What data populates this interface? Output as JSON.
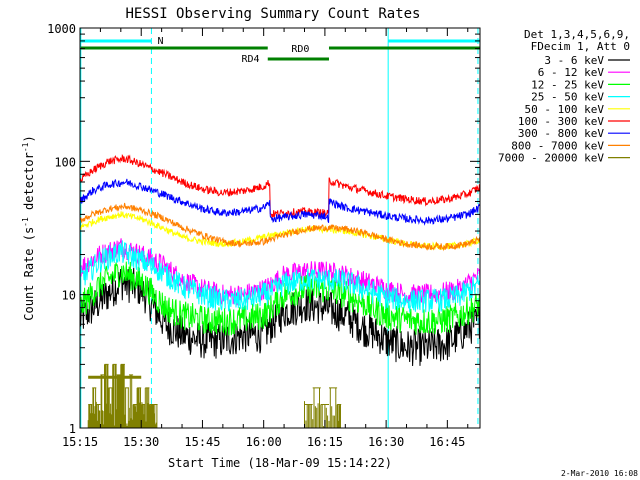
{
  "chart_data": {
    "type": "line",
    "title": "HESSI Observing Summary Count Rates",
    "xlabel": "Start Time (18-Mar-09 15:14:22)",
    "ylabel_main": "Count Rate (s",
    "ylabel_sup1": "-1",
    "ylabel_mid": " detector",
    "ylabel_sup2": "-1",
    "ylabel_end": ")",
    "timestamp": "2-Mar-2010 16:08",
    "y_scale": "log",
    "xlim_minutes": [
      15.0,
      113.0
    ],
    "ylim": [
      1,
      1000
    ],
    "x_ticks": [
      {
        "label": "15:15",
        "min": 15
      },
      {
        "label": "15:30",
        "min": 30
      },
      {
        "label": "15:45",
        "min": 45
      },
      {
        "label": "16:00",
        "min": 60
      },
      {
        "label": "16:15",
        "min": 75
      },
      {
        "label": "16:30",
        "min": 90
      },
      {
        "label": "16:45",
        "min": 105
      }
    ],
    "y_ticks": [
      {
        "label": "1",
        "value": 1
      },
      {
        "label": "10",
        "value": 10
      },
      {
        "label": "100",
        "value": 100
      },
      {
        "label": "1000",
        "value": 1000
      }
    ],
    "legend_header": [
      "Det 1,3,4,5,6,9,",
      "FDecim 1, Att 0"
    ],
    "legend_position": "outside-right",
    "series": [
      {
        "name": "3 - 6 keV",
        "color": "#000000",
        "x": [
          15,
          20,
          25,
          30,
          33,
          36,
          40,
          45,
          50,
          55,
          60,
          62,
          65,
          70,
          75,
          80,
          85,
          88,
          90,
          95,
          100,
          105,
          108,
          113
        ],
        "y": [
          6.5,
          9,
          12.5,
          11,
          8,
          6,
          5,
          4.5,
          4.5,
          5,
          5,
          6,
          7.5,
          8.5,
          8,
          7,
          5.5,
          5,
          4.5,
          4,
          4,
          4.3,
          5,
          6.5
        ]
      },
      {
        "name": "6 - 12 keV",
        "color": "#ff00ff",
        "x": [
          15,
          20,
          25,
          30,
          35,
          40,
          45,
          50,
          55,
          60,
          62,
          65,
          70,
          75,
          80,
          85,
          90,
          95,
          100,
          105,
          108,
          113
        ],
        "y": [
          16,
          20,
          23,
          20,
          17,
          13,
          11,
          10,
          10,
          11,
          12,
          14,
          15,
          15,
          14,
          12.5,
          11,
          10,
          10,
          10.5,
          11,
          14
        ]
      },
      {
        "name": "12 - 25 keV",
        "color": "#00ff00",
        "x": [
          15,
          20,
          25,
          30,
          33,
          36,
          40,
          45,
          50,
          55,
          60,
          62,
          65,
          70,
          75,
          80,
          85,
          88,
          90,
          95,
          100,
          105,
          108,
          113
        ],
        "y": [
          8,
          12,
          15,
          12.5,
          10,
          8,
          7,
          6.5,
          6.3,
          6.5,
          7,
          8,
          10,
          11,
          11,
          10,
          8.5,
          7.5,
          7,
          6.5,
          6.3,
          6.5,
          7,
          8.5
        ]
      },
      {
        "name": "25 - 50 keV",
        "color": "#00ffff",
        "x": [
          15,
          20,
          25,
          30,
          35,
          40,
          45,
          50,
          55,
          60,
          62,
          65,
          70,
          75,
          80,
          85,
          90,
          95,
          100,
          105,
          108,
          113
        ],
        "y": [
          13,
          18,
          21,
          18,
          15,
          11.5,
          10,
          9,
          9,
          10,
          10.5,
          12,
          13,
          13,
          12.5,
          11,
          9.5,
          9,
          9,
          9.2,
          9.8,
          12
        ]
      },
      {
        "name": "50 - 100 keV",
        "color": "#ffff00",
        "x": [
          15,
          20,
          25,
          30,
          35,
          40,
          45,
          50,
          55,
          60,
          65,
          70,
          75,
          80,
          85,
          90,
          95,
          100,
          105,
          110,
          113
        ],
        "y": [
          32,
          37,
          40,
          37,
          32,
          27,
          25,
          24,
          25,
          27,
          29,
          31,
          31,
          30,
          28,
          26,
          24,
          23,
          23,
          24,
          26
        ]
      },
      {
        "name": "100 - 300 keV",
        "color": "#ff0000",
        "x": [
          15,
          18,
          22,
          26,
          30,
          35,
          40,
          45,
          50,
          55,
          60,
          61.5,
          61.6,
          65,
          70,
          75,
          75.9,
          76,
          80,
          85,
          90,
          95,
          100,
          105,
          110,
          113
        ],
        "y": [
          72,
          85,
          100,
          105,
          95,
          82,
          70,
          62,
          58,
          60,
          65,
          70,
          40,
          41,
          42,
          41,
          40,
          72,
          65,
          60,
          55,
          52,
          50,
          52,
          57,
          64
        ]
      },
      {
        "name": "300 - 800 keV",
        "color": "#0000ff",
        "x": [
          15,
          18,
          22,
          26,
          30,
          35,
          40,
          45,
          50,
          55,
          60,
          61.5,
          61.6,
          65,
          70,
          75,
          75.9,
          76,
          80,
          85,
          90,
          95,
          100,
          105,
          110,
          113
        ],
        "y": [
          50,
          60,
          67,
          70,
          65,
          57,
          50,
          44,
          41,
          42,
          45,
          49,
          37,
          38,
          40,
          39,
          37,
          50,
          45,
          42,
          39,
          37,
          36,
          37,
          40,
          45
        ]
      },
      {
        "name": "800 - 7000 keV",
        "color": "#ff8000",
        "x": [
          15,
          18,
          22,
          26,
          30,
          35,
          40,
          45,
          50,
          55,
          60,
          65,
          70,
          75,
          80,
          85,
          90,
          95,
          100,
          105,
          110,
          113
        ],
        "y": [
          36,
          40,
          44,
          46,
          43,
          38,
          32,
          28,
          25,
          24,
          25,
          28,
          31,
          32,
          31,
          29,
          26,
          24,
          23,
          23,
          24,
          26
        ]
      },
      {
        "name": "7000 - 20000 keV",
        "color": "#808000",
        "x": [
          17,
          18,
          19,
          20,
          21,
          22,
          23,
          24,
          25,
          26,
          27,
          28,
          29,
          30,
          31,
          32,
          33,
          70,
          72,
          74,
          76,
          78
        ],
        "y": [
          1.5,
          2,
          1.5,
          2.5,
          3,
          2,
          3,
          2.5,
          3,
          2,
          2.5,
          1.5,
          2,
          1.5,
          2,
          1.5,
          1.5,
          1.5,
          2,
          1.5,
          2,
          1.5
        ]
      }
    ],
    "vertical_lines_solid": [
      15.2,
      90.5
    ],
    "vertical_lines_dashed": [
      32.5,
      112.5
    ],
    "top_bars": {
      "cyan_N": {
        "label": "N",
        "color": "#00ffff",
        "segments": [
          [
            15.2,
            32.5
          ],
          [
            90.5,
            113
          ]
        ],
        "level": 1
      },
      "green_RD0": {
        "label": "RD0",
        "color": "#008000",
        "segments": [
          [
            15.2,
            61.0
          ],
          [
            76.0,
            113
          ]
        ],
        "level": 2
      },
      "green_RD4": {
        "label": "RD4",
        "color": "#008000",
        "segments": [
          [
            61.0,
            76.0
          ]
        ],
        "level": 3
      }
    }
  }
}
